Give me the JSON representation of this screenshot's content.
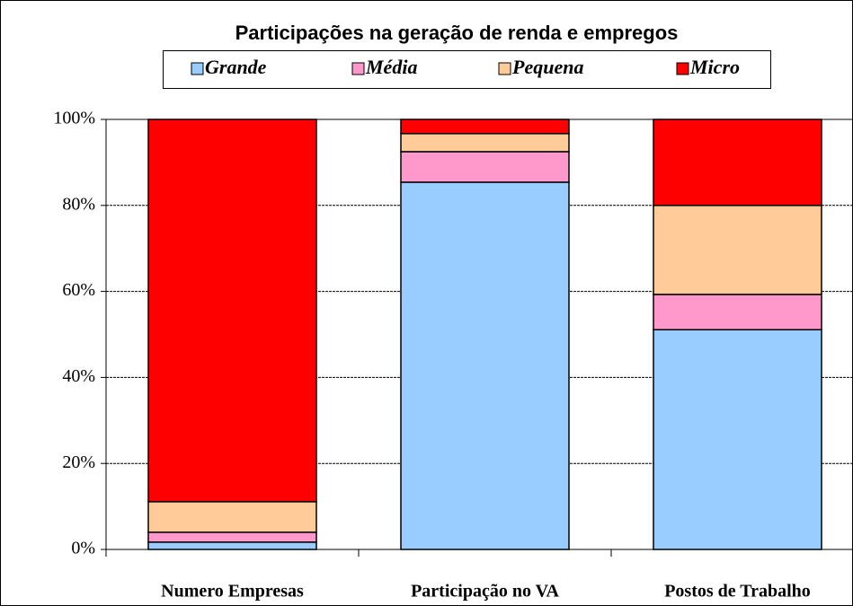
{
  "chart_data": {
    "type": "stacked_bar",
    "title": "Participações na geração de renda e empregos",
    "categories": [
      "Numero Empresas",
      "Participação no VA",
      "Postos de Trabalho"
    ],
    "series": [
      {
        "name": "Grande",
        "color": "#99ccff",
        "values": [
          1.7,
          85.4,
          51.1
        ]
      },
      {
        "name": "Média",
        "color": "#ff99cc",
        "values": [
          2.3,
          7.1,
          8.2
        ]
      },
      {
        "name": "Pequena",
        "color": "#ffcc99",
        "values": [
          7.1,
          4.2,
          20.7
        ]
      },
      {
        "name": "Micro",
        "color": "#ff0000",
        "values": [
          88.9,
          3.3,
          20.0
        ]
      }
    ],
    "ylim": [
      0,
      100
    ],
    "yticks": [
      {
        "value": 0,
        "label": "0%"
      },
      {
        "value": 20,
        "label": "20%"
      },
      {
        "value": 40,
        "label": "40%"
      },
      {
        "value": 60,
        "label": "60%"
      },
      {
        "value": 80,
        "label": "80%"
      },
      {
        "value": 100,
        "label": "100%"
      }
    ],
    "grid": true,
    "legend": "top"
  }
}
